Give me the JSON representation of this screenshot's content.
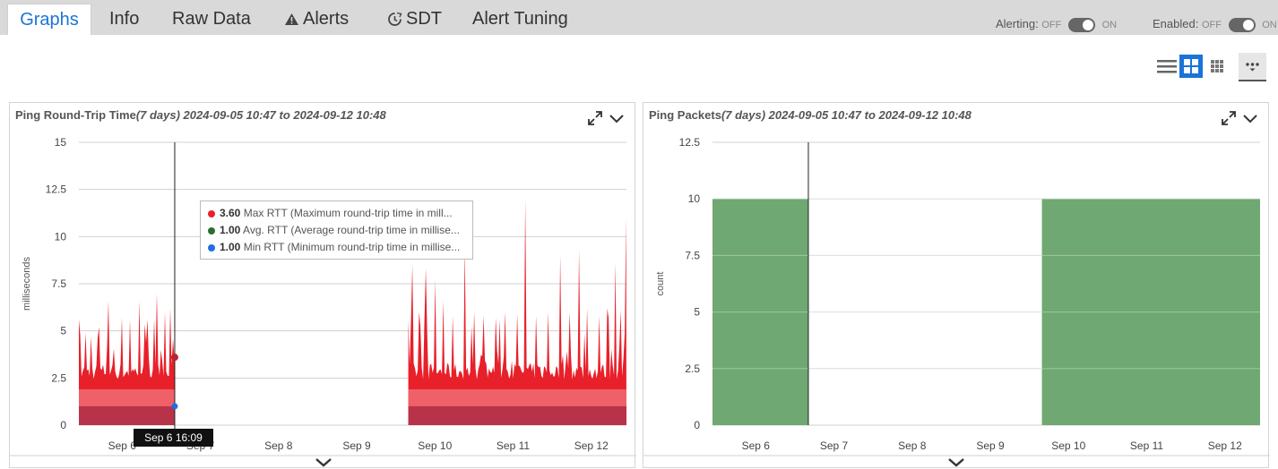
{
  "tabs": [
    {
      "label": "Graphs",
      "active": true,
      "icon": ""
    },
    {
      "label": "Info",
      "active": false,
      "icon": ""
    },
    {
      "label": "Raw Data",
      "active": false,
      "icon": ""
    },
    {
      "label": "Alerts",
      "active": false,
      "icon": "warning-icon"
    },
    {
      "label": "SDT",
      "active": false,
      "icon": "sdt-clock-icon"
    },
    {
      "label": "Alert Tuning",
      "active": false,
      "icon": ""
    }
  ],
  "toggles": {
    "alerting": {
      "label": "Alerting:",
      "off": "OFF",
      "on": "ON",
      "state": "on"
    },
    "enabled": {
      "label": "Enabled:",
      "off": "OFF",
      "on": "ON",
      "state": "on"
    }
  },
  "view_controls": [
    {
      "name": "list-view-icon",
      "selected": false
    },
    {
      "name": "grid-2-view-icon",
      "selected": true
    },
    {
      "name": "grid-3-view-icon",
      "selected": false
    },
    {
      "name": "more-options-icon",
      "selected": false
    }
  ],
  "colors": {
    "accent": "#1a74d8",
    "max": "#e8202a",
    "avg_fill": "#f06068",
    "min_fill": "#b8334a",
    "packets": "#6fa872",
    "tabbar": "#d9d9d9"
  },
  "panels": {
    "rtt": {
      "title": "Ping Round-Trip Time",
      "range": "(7 days) 2024-09-05 10:47 to 2024-09-12 10:48"
    },
    "packets": {
      "title": "Ping Packets",
      "range": "(7 days) 2024-09-05 10:47 to 2024-09-12 10:48"
    }
  },
  "tooltip": {
    "rows": [
      {
        "value": "3.60",
        "label": "Max RTT (Maximum round-trip time in mill...",
        "color": "#e8202a"
      },
      {
        "value": "1.00",
        "label": "Avg. RTT (Average round-trip time in millise...",
        "color": "#2f6b33"
      },
      {
        "value": "1.00",
        "label": "Min RTT (Minimum round-trip time in millise...",
        "color": "#1f6fe0"
      }
    ]
  },
  "crosshair_label": "Sep 6 16:09",
  "chart_data": [
    {
      "type": "area",
      "title": "Ping Round-Trip Time",
      "ylabel": "milliseconds",
      "ylim": [
        0,
        15
      ],
      "yticks": [
        "0",
        "2.5",
        "5",
        "7.5",
        "10",
        "12.5",
        "15"
      ],
      "xticks": [
        "Sep 6",
        "Sep 7",
        "Sep 8",
        "Sep 9",
        "Sep 10",
        "Sep 11",
        "Sep 12"
      ],
      "x_range_days": [
        5.447,
        12.45
      ],
      "segments": [
        {
          "start": 5.447,
          "end": 6.673
        },
        {
          "start": 9.66,
          "end": 12.45
        }
      ],
      "series": [
        {
          "name": "Max RTT",
          "typical": 2.4,
          "peaks": [
            [
              5.47,
              4.8
            ],
            [
              5.53,
              4.9
            ],
            [
              5.6,
              4.7
            ],
            [
              5.7,
              5.2
            ],
            [
              5.83,
              6.6
            ],
            [
              6.0,
              5.7
            ],
            [
              6.1,
              5.6
            ],
            [
              6.22,
              6.6
            ],
            [
              6.32,
              5.6
            ],
            [
              6.45,
              7.0
            ],
            [
              6.55,
              6.0
            ],
            [
              6.62,
              6.2
            ],
            [
              6.673,
              3.6
            ],
            [
              9.72,
              8.5
            ],
            [
              9.8,
              6.0
            ],
            [
              9.88,
              8.3
            ],
            [
              10.0,
              7.7
            ],
            [
              10.1,
              6.6
            ],
            [
              10.22,
              5.8
            ],
            [
              10.38,
              9.5
            ],
            [
              10.5,
              6.0
            ],
            [
              10.62,
              5.8
            ],
            [
              10.78,
              5.7
            ],
            [
              10.9,
              6.0
            ],
            [
              11.05,
              5.9
            ],
            [
              11.15,
              12.0
            ],
            [
              11.3,
              5.8
            ],
            [
              11.45,
              6.0
            ],
            [
              11.6,
              9.0
            ],
            [
              11.72,
              6.0
            ],
            [
              11.85,
              9.3
            ],
            [
              11.95,
              6.2
            ],
            [
              12.1,
              5.8
            ],
            [
              12.2,
              6.2
            ],
            [
              12.3,
              8.6
            ],
            [
              12.38,
              6.1
            ],
            [
              12.44,
              11.0
            ]
          ]
        },
        {
          "name": "Avg. RTT",
          "typical": 1.9
        },
        {
          "name": "Min RTT",
          "typical": 1.0
        }
      ]
    },
    {
      "type": "bar",
      "title": "Ping Packets",
      "ylabel": "count",
      "ylim": [
        0,
        12.5
      ],
      "yticks": [
        "0",
        "2.5",
        "5",
        "7.5",
        "10",
        "12.5"
      ],
      "xticks": [
        "Sep 6",
        "Sep 7",
        "Sep 8",
        "Sep 9",
        "Sep 10",
        "Sep 11",
        "Sep 12"
      ],
      "x_range_days": [
        5.447,
        12.45
      ],
      "series": [
        {
          "name": "Packets",
          "segments": [
            {
              "start": 5.447,
              "end": 6.673,
              "value": 10
            },
            {
              "start": 9.66,
              "end": 12.45,
              "value": 10
            }
          ]
        }
      ]
    }
  ]
}
